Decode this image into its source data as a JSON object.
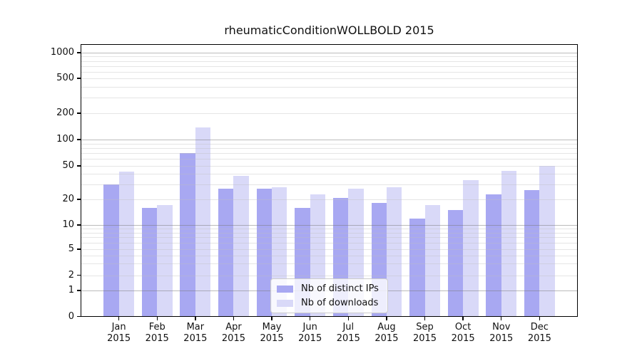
{
  "chart_data": {
    "type": "bar",
    "title": "rheumaticConditionWOLLBOLD 2015",
    "categories": [
      "Jan",
      "Feb",
      "Mar",
      "Apr",
      "May",
      "Jun",
      "Jul",
      "Aug",
      "Sep",
      "Oct",
      "Nov",
      "Dec"
    ],
    "category_year": "2015",
    "series": [
      {
        "name": "Nb of distinct IPs",
        "color": "#a8a8f2",
        "values": [
          30,
          16,
          70,
          27,
          27,
          16,
          21,
          18,
          12,
          15,
          23,
          26
        ]
      },
      {
        "name": "Nb of downloads",
        "color": "#d9d9f8",
        "values": [
          43,
          17,
          137,
          38,
          28,
          23,
          27,
          28,
          17,
          34,
          44,
          50
        ]
      }
    ],
    "y_axis": {
      "scale": "log-like",
      "ticks": [
        0,
        1,
        2,
        5,
        10,
        20,
        50,
        100,
        200,
        500,
        1000
      ],
      "major_gridlines": [
        1,
        10,
        100,
        1000
      ],
      "minor_gridlines": [
        2,
        3,
        4,
        5,
        6,
        7,
        8,
        9,
        20,
        30,
        40,
        50,
        60,
        70,
        80,
        90,
        200,
        300,
        400,
        500,
        600,
        700,
        800,
        900
      ]
    },
    "legend": {
      "position": "lower center",
      "entries": [
        "Nb of distinct IPs",
        "Nb of downloads"
      ]
    },
    "grid": true
  }
}
